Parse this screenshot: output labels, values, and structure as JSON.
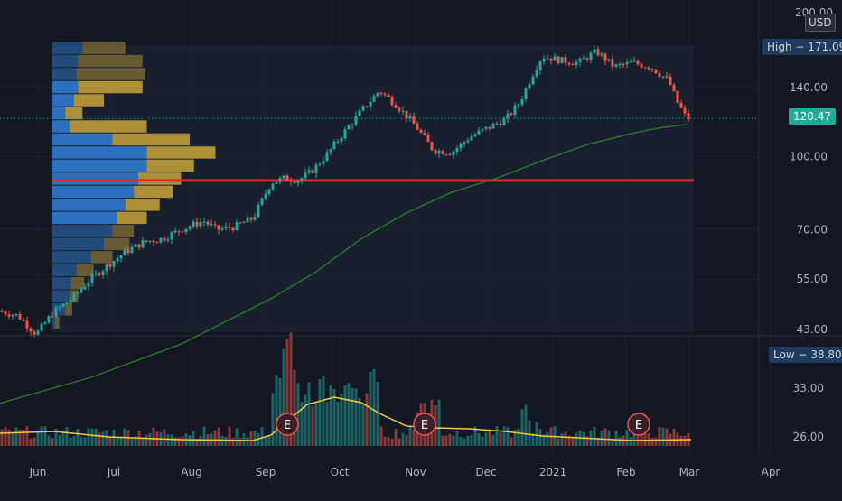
{
  "currency": "USD",
  "price_labels": {
    "top": "200.00",
    "high": "High − 171.09",
    "last": "120.47",
    "low": "Low − 38.80"
  },
  "colors": {
    "background": "#131722",
    "up": "#26a69a",
    "down": "#ef5350",
    "sma": "#2e7d32",
    "support_line": "#e5262a",
    "volume_avg": "#f5c842",
    "vp_up": "#2f7ed8",
    "vp_down": "#c9a43a",
    "high_badge": "#1e3a5f",
    "last_badge": "#22ab94",
    "earnings": "#ef5350"
  },
  "chart_data": {
    "type": "candlestick",
    "scale": "log",
    "y_ticks": [
      43,
      55,
      70,
      100,
      140
    ],
    "y_tick_labels": [
      "43.00",
      "55.00",
      "70.00",
      "100.00",
      "140.00"
    ],
    "volume_ticks": [
      26,
      33
    ],
    "volume_tick_labels": [
      "26.00",
      "33.00"
    ],
    "x_tick_labels": [
      "Jun",
      "Jul",
      "Aug",
      "Sep",
      "Oct",
      "Nov",
      "Dec",
      "2021",
      "Feb",
      "Mar",
      "Apr"
    ],
    "high": 171.09,
    "low": 38.8,
    "last": 120.47,
    "support_level": 89,
    "price_path": [
      [
        0,
        47
      ],
      [
        20,
        46
      ],
      [
        40,
        42
      ],
      [
        60,
        47
      ],
      [
        80,
        50
      ],
      [
        100,
        55
      ],
      [
        120,
        59
      ],
      [
        140,
        63
      ],
      [
        160,
        66
      ],
      [
        180,
        67
      ],
      [
        200,
        70
      ],
      [
        225,
        73
      ],
      [
        240,
        70
      ],
      [
        260,
        71
      ],
      [
        280,
        74
      ],
      [
        300,
        88
      ],
      [
        315,
        90
      ],
      [
        330,
        89
      ],
      [
        345,
        93
      ],
      [
        360,
        100
      ],
      [
        380,
        112
      ],
      [
        400,
        125
      ],
      [
        420,
        138
      ],
      [
        440,
        128
      ],
      [
        460,
        116
      ],
      [
        480,
        103
      ],
      [
        500,
        102
      ],
      [
        520,
        110
      ],
      [
        540,
        115
      ],
      [
        560,
        120
      ],
      [
        575,
        130
      ],
      [
        590,
        150
      ],
      [
        600,
        163
      ],
      [
        620,
        160
      ],
      [
        640,
        158
      ],
      [
        660,
        167
      ],
      [
        680,
        155
      ],
      [
        700,
        158
      ],
      [
        720,
        155
      ],
      [
        740,
        145
      ],
      [
        750,
        130
      ],
      [
        760,
        120.47
      ]
    ],
    "sma_path": [
      [
        0,
        30
      ],
      [
        100,
        34
      ],
      [
        200,
        40
      ],
      [
        300,
        50
      ],
      [
        350,
        57
      ],
      [
        400,
        67
      ],
      [
        450,
        76
      ],
      [
        500,
        84
      ],
      [
        550,
        90
      ],
      [
        600,
        98
      ],
      [
        650,
        106
      ],
      [
        700,
        112
      ],
      [
        730,
        115
      ],
      [
        760,
        117
      ]
    ],
    "volume_profile": {
      "rows": 22,
      "price_range": [
        43,
        175
      ],
      "up": [
        3,
        15,
        20,
        22,
        28,
        45,
        60,
        70,
        75,
        85,
        95,
        100,
        110,
        110,
        70,
        20,
        15,
        25,
        30,
        28,
        30,
        35
      ],
      "down": [
        5,
        8,
        10,
        15,
        20,
        25,
        30,
        25,
        35,
        40,
        45,
        50,
        55,
        80,
        90,
        90,
        20,
        35,
        75,
        80,
        75,
        50
      ]
    },
    "earnings_markers": [
      {
        "x": 318,
        "label": "E"
      },
      {
        "x": 470,
        "label": "E"
      },
      {
        "x": 707,
        "label": "E"
      }
    ]
  }
}
